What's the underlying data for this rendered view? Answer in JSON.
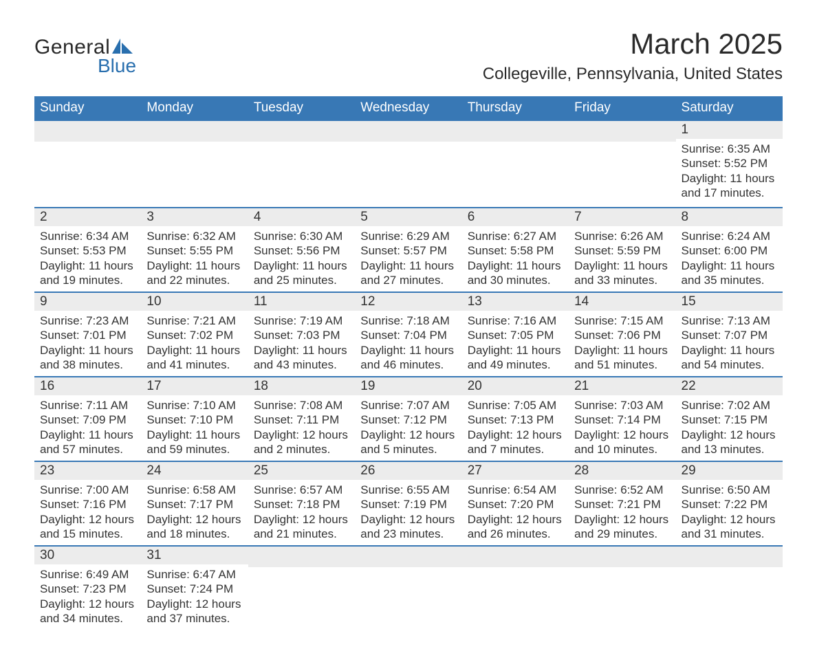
{
  "logo": {
    "word1": "General",
    "word2": "Blue"
  },
  "title": "March 2025",
  "location": "Collegeville, Pennsylvania, United States",
  "colors": {
    "header_bg": "#3878b5",
    "header_fg": "#ffffff",
    "daynum_bg": "#ececec",
    "text": "#333333",
    "accent": "#296fae"
  },
  "fonts": {
    "body_pt": 17,
    "title_pt": 42,
    "location_pt": 24,
    "dayheader_pt": 19
  },
  "day_headers": [
    "Sunday",
    "Monday",
    "Tuesday",
    "Wednesday",
    "Thursday",
    "Friday",
    "Saturday"
  ],
  "weeks": [
    [
      null,
      null,
      null,
      null,
      null,
      null,
      {
        "n": "1",
        "sunrise": "Sunrise: 6:35 AM",
        "sunset": "Sunset: 5:52 PM",
        "d1": "Daylight: 11 hours",
        "d2": "and 17 minutes."
      }
    ],
    [
      {
        "n": "2",
        "sunrise": "Sunrise: 6:34 AM",
        "sunset": "Sunset: 5:53 PM",
        "d1": "Daylight: 11 hours",
        "d2": "and 19 minutes."
      },
      {
        "n": "3",
        "sunrise": "Sunrise: 6:32 AM",
        "sunset": "Sunset: 5:55 PM",
        "d1": "Daylight: 11 hours",
        "d2": "and 22 minutes."
      },
      {
        "n": "4",
        "sunrise": "Sunrise: 6:30 AM",
        "sunset": "Sunset: 5:56 PM",
        "d1": "Daylight: 11 hours",
        "d2": "and 25 minutes."
      },
      {
        "n": "5",
        "sunrise": "Sunrise: 6:29 AM",
        "sunset": "Sunset: 5:57 PM",
        "d1": "Daylight: 11 hours",
        "d2": "and 27 minutes."
      },
      {
        "n": "6",
        "sunrise": "Sunrise: 6:27 AM",
        "sunset": "Sunset: 5:58 PM",
        "d1": "Daylight: 11 hours",
        "d2": "and 30 minutes."
      },
      {
        "n": "7",
        "sunrise": "Sunrise: 6:26 AM",
        "sunset": "Sunset: 5:59 PM",
        "d1": "Daylight: 11 hours",
        "d2": "and 33 minutes."
      },
      {
        "n": "8",
        "sunrise": "Sunrise: 6:24 AM",
        "sunset": "Sunset: 6:00 PM",
        "d1": "Daylight: 11 hours",
        "d2": "and 35 minutes."
      }
    ],
    [
      {
        "n": "9",
        "sunrise": "Sunrise: 7:23 AM",
        "sunset": "Sunset: 7:01 PM",
        "d1": "Daylight: 11 hours",
        "d2": "and 38 minutes."
      },
      {
        "n": "10",
        "sunrise": "Sunrise: 7:21 AM",
        "sunset": "Sunset: 7:02 PM",
        "d1": "Daylight: 11 hours",
        "d2": "and 41 minutes."
      },
      {
        "n": "11",
        "sunrise": "Sunrise: 7:19 AM",
        "sunset": "Sunset: 7:03 PM",
        "d1": "Daylight: 11 hours",
        "d2": "and 43 minutes."
      },
      {
        "n": "12",
        "sunrise": "Sunrise: 7:18 AM",
        "sunset": "Sunset: 7:04 PM",
        "d1": "Daylight: 11 hours",
        "d2": "and 46 minutes."
      },
      {
        "n": "13",
        "sunrise": "Sunrise: 7:16 AM",
        "sunset": "Sunset: 7:05 PM",
        "d1": "Daylight: 11 hours",
        "d2": "and 49 minutes."
      },
      {
        "n": "14",
        "sunrise": "Sunrise: 7:15 AM",
        "sunset": "Sunset: 7:06 PM",
        "d1": "Daylight: 11 hours",
        "d2": "and 51 minutes."
      },
      {
        "n": "15",
        "sunrise": "Sunrise: 7:13 AM",
        "sunset": "Sunset: 7:07 PM",
        "d1": "Daylight: 11 hours",
        "d2": "and 54 minutes."
      }
    ],
    [
      {
        "n": "16",
        "sunrise": "Sunrise: 7:11 AM",
        "sunset": "Sunset: 7:09 PM",
        "d1": "Daylight: 11 hours",
        "d2": "and 57 minutes."
      },
      {
        "n": "17",
        "sunrise": "Sunrise: 7:10 AM",
        "sunset": "Sunset: 7:10 PM",
        "d1": "Daylight: 11 hours",
        "d2": "and 59 minutes."
      },
      {
        "n": "18",
        "sunrise": "Sunrise: 7:08 AM",
        "sunset": "Sunset: 7:11 PM",
        "d1": "Daylight: 12 hours",
        "d2": "and 2 minutes."
      },
      {
        "n": "19",
        "sunrise": "Sunrise: 7:07 AM",
        "sunset": "Sunset: 7:12 PM",
        "d1": "Daylight: 12 hours",
        "d2": "and 5 minutes."
      },
      {
        "n": "20",
        "sunrise": "Sunrise: 7:05 AM",
        "sunset": "Sunset: 7:13 PM",
        "d1": "Daylight: 12 hours",
        "d2": "and 7 minutes."
      },
      {
        "n": "21",
        "sunrise": "Sunrise: 7:03 AM",
        "sunset": "Sunset: 7:14 PM",
        "d1": "Daylight: 12 hours",
        "d2": "and 10 minutes."
      },
      {
        "n": "22",
        "sunrise": "Sunrise: 7:02 AM",
        "sunset": "Sunset: 7:15 PM",
        "d1": "Daylight: 12 hours",
        "d2": "and 13 minutes."
      }
    ],
    [
      {
        "n": "23",
        "sunrise": "Sunrise: 7:00 AM",
        "sunset": "Sunset: 7:16 PM",
        "d1": "Daylight: 12 hours",
        "d2": "and 15 minutes."
      },
      {
        "n": "24",
        "sunrise": "Sunrise: 6:58 AM",
        "sunset": "Sunset: 7:17 PM",
        "d1": "Daylight: 12 hours",
        "d2": "and 18 minutes."
      },
      {
        "n": "25",
        "sunrise": "Sunrise: 6:57 AM",
        "sunset": "Sunset: 7:18 PM",
        "d1": "Daylight: 12 hours",
        "d2": "and 21 minutes."
      },
      {
        "n": "26",
        "sunrise": "Sunrise: 6:55 AM",
        "sunset": "Sunset: 7:19 PM",
        "d1": "Daylight: 12 hours",
        "d2": "and 23 minutes."
      },
      {
        "n": "27",
        "sunrise": "Sunrise: 6:54 AM",
        "sunset": "Sunset: 7:20 PM",
        "d1": "Daylight: 12 hours",
        "d2": "and 26 minutes."
      },
      {
        "n": "28",
        "sunrise": "Sunrise: 6:52 AM",
        "sunset": "Sunset: 7:21 PM",
        "d1": "Daylight: 12 hours",
        "d2": "and 29 minutes."
      },
      {
        "n": "29",
        "sunrise": "Sunrise: 6:50 AM",
        "sunset": "Sunset: 7:22 PM",
        "d1": "Daylight: 12 hours",
        "d2": "and 31 minutes."
      }
    ],
    [
      {
        "n": "30",
        "sunrise": "Sunrise: 6:49 AM",
        "sunset": "Sunset: 7:23 PM",
        "d1": "Daylight: 12 hours",
        "d2": "and 34 minutes."
      },
      {
        "n": "31",
        "sunrise": "Sunrise: 6:47 AM",
        "sunset": "Sunset: 7:24 PM",
        "d1": "Daylight: 12 hours",
        "d2": "and 37 minutes."
      },
      null,
      null,
      null,
      null,
      null
    ]
  ]
}
